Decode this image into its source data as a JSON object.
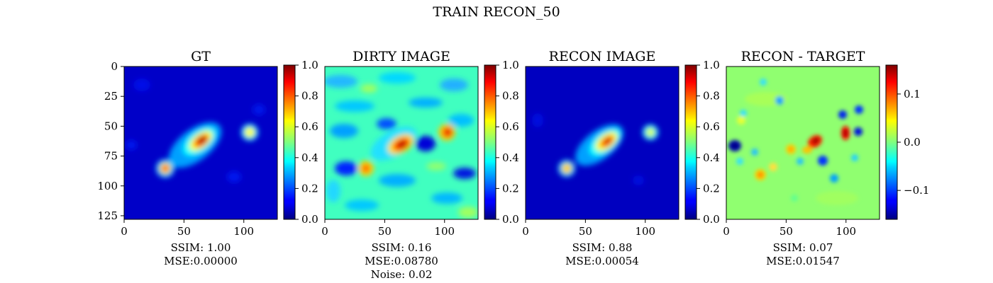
{
  "figure": {
    "title": "TRAIN RECON_50"
  },
  "chart_data": [
    {
      "type": "heatmap",
      "title": "GT",
      "colormap": "jet",
      "image_size": [
        128,
        128
      ],
      "xticks": [
        "0",
        "50",
        "100"
      ],
      "yticks": [
        "0",
        "25",
        "50",
        "75",
        "100",
        "125"
      ],
      "colorbar": {
        "range": [
          0,
          1
        ],
        "ticks": [
          "0.0",
          "0.2",
          "0.4",
          "0.6",
          "0.8",
          "1.0"
        ]
      },
      "caption": [
        "SSIM: 1.00",
        "MSE:0.00000"
      ]
    },
    {
      "type": "heatmap",
      "title": "DIRTY IMAGE",
      "colormap": "jet",
      "image_size": [
        128,
        128
      ],
      "xticks": [
        "0",
        "50",
        "100"
      ],
      "colorbar": {
        "range": [
          0,
          1
        ],
        "ticks": [
          "0.0",
          "0.2",
          "0.4",
          "0.6",
          "0.8",
          "1.0"
        ]
      },
      "caption": [
        "SSIM: 0.16",
        "MSE:0.08780",
        "Noise: 0.02"
      ]
    },
    {
      "type": "heatmap",
      "title": "RECON IMAGE",
      "colormap": "jet",
      "image_size": [
        128,
        128
      ],
      "xticks": [
        "0",
        "50",
        "100"
      ],
      "colorbar": {
        "range": [
          0,
          1
        ],
        "ticks": [
          "0.0",
          "0.2",
          "0.4",
          "0.6",
          "0.8",
          "1.0"
        ]
      },
      "caption": [
        "SSIM: 0.88",
        "MSE:0.00054"
      ]
    },
    {
      "type": "heatmap",
      "title": "RECON - TARGET",
      "colormap": "jet",
      "image_size": [
        128,
        128
      ],
      "xticks": [
        "0",
        "50",
        "100"
      ],
      "colorbar": {
        "range": [
          -0.16,
          0.16
        ],
        "ticks": [
          "−0.1",
          "0.0",
          "0.1"
        ]
      },
      "caption": [
        "SSIM: 0.07",
        "MSE:0.01547"
      ]
    }
  ]
}
